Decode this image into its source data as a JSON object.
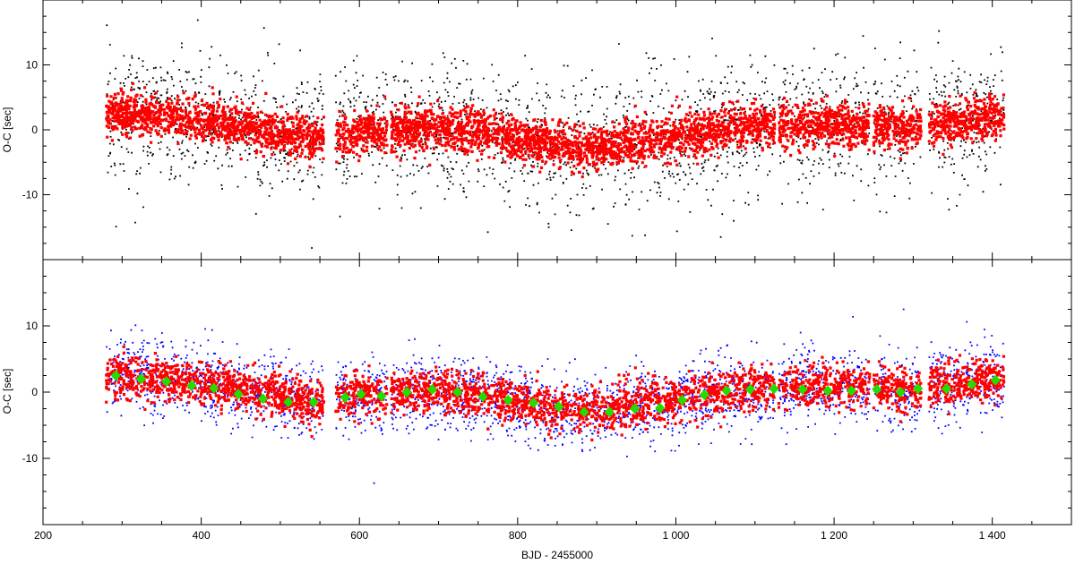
{
  "chart_data": [
    {
      "type": "scatter",
      "xlabel": "",
      "ylabel": "O-C [sec]",
      "xlim": [
        200,
        1500
      ],
      "ylim": [
        -20,
        20
      ],
      "xticks": [
        200,
        400,
        600,
        800,
        1000,
        1200,
        1400
      ],
      "yticks": [
        -10,
        0,
        10
      ],
      "ytick_labels": [
        "-10",
        "0",
        "10"
      ],
      "grid": false,
      "series": [
        {
          "color": "#000000",
          "marker": "dot",
          "spread": 5,
          "values": [
            {
              "x": 300,
              "y": 2.5
            },
            {
              "x": 350,
              "y": 2
            },
            {
              "x": 400,
              "y": 1.5
            },
            {
              "x": 450,
              "y": 0.5
            },
            {
              "x": 500,
              "y": -0.5
            },
            {
              "x": 550,
              "y": -1.5
            },
            {
              "x": 600,
              "y": -0.5
            },
            {
              "x": 650,
              "y": 0
            },
            {
              "x": 700,
              "y": 0
            },
            {
              "x": 750,
              "y": -0.5
            },
            {
              "x": 800,
              "y": -1.5
            },
            {
              "x": 850,
              "y": -2.5
            },
            {
              "x": 900,
              "y": -3
            },
            {
              "x": 950,
              "y": -2
            },
            {
              "x": 1000,
              "y": -1
            },
            {
              "x": 1050,
              "y": 0
            },
            {
              "x": 1100,
              "y": 0.5
            },
            {
              "x": 1150,
              "y": 0.8
            },
            {
              "x": 1200,
              "y": 0.8
            },
            {
              "x": 1250,
              "y": 0.5
            },
            {
              "x": 1300,
              "y": 0.5
            },
            {
              "x": 1350,
              "y": 1
            },
            {
              "x": 1400,
              "y": 2
            }
          ]
        },
        {
          "color": "#ff0000",
          "marker": "square",
          "spread": 1.6,
          "values": [
            {
              "x": 300,
              "y": 2.5
            },
            {
              "x": 350,
              "y": 2
            },
            {
              "x": 400,
              "y": 1.5
            },
            {
              "x": 450,
              "y": 0.5
            },
            {
              "x": 500,
              "y": -0.5
            },
            {
              "x": 550,
              "y": -1.5
            },
            {
              "x": 600,
              "y": -0.5
            },
            {
              "x": 650,
              "y": 0
            },
            {
              "x": 700,
              "y": 0
            },
            {
              "x": 750,
              "y": -0.5
            },
            {
              "x": 800,
              "y": -1.5
            },
            {
              "x": 850,
              "y": -2.5
            },
            {
              "x": 900,
              "y": -3
            },
            {
              "x": 950,
              "y": -2
            },
            {
              "x": 1000,
              "y": -1
            },
            {
              "x": 1050,
              "y": 0
            },
            {
              "x": 1100,
              "y": 0.5
            },
            {
              "x": 1150,
              "y": 0.8
            },
            {
              "x": 1200,
              "y": 0.8
            },
            {
              "x": 1250,
              "y": 0.5
            },
            {
              "x": 1300,
              "y": 0.5
            },
            {
              "x": 1350,
              "y": 1
            },
            {
              "x": 1400,
              "y": 2
            }
          ]
        }
      ],
      "x_coverage": [
        [
          280,
          555
        ],
        [
          570,
          635
        ],
        [
          640,
          1125
        ],
        [
          1130,
          1245
        ],
        [
          1250,
          1310
        ],
        [
          1320,
          1415
        ]
      ]
    },
    {
      "type": "scatter",
      "xlabel": "BJD - 2455000",
      "ylabel": "O-C [sec]",
      "xlim": [
        200,
        1500
      ],
      "ylim": [
        -20,
        20
      ],
      "xticks": [
        200,
        400,
        600,
        800,
        1000,
        1200,
        1400
      ],
      "xtick_labels": [
        "200",
        "400",
        "600",
        "800",
        "1 000",
        "1 200",
        "1 400"
      ],
      "yticks": [
        -10,
        0,
        10
      ],
      "ytick_labels": [
        "-10",
        "0",
        "10"
      ],
      "grid": false,
      "series": [
        {
          "color": "#0000ff",
          "marker": "dot",
          "spread": 2.8,
          "values": [
            {
              "x": 300,
              "y": 2.5
            },
            {
              "x": 350,
              "y": 2
            },
            {
              "x": 400,
              "y": 1.5
            },
            {
              "x": 450,
              "y": 0.5
            },
            {
              "x": 500,
              "y": -0.5
            },
            {
              "x": 550,
              "y": -1.5
            },
            {
              "x": 600,
              "y": -0.5
            },
            {
              "x": 650,
              "y": 0
            },
            {
              "x": 700,
              "y": 0
            },
            {
              "x": 750,
              "y": -0.5
            },
            {
              "x": 800,
              "y": -1.5
            },
            {
              "x": 850,
              "y": -2.5
            },
            {
              "x": 900,
              "y": -3
            },
            {
              "x": 950,
              "y": -2
            },
            {
              "x": 1000,
              "y": -1
            },
            {
              "x": 1050,
              "y": 0
            },
            {
              "x": 1100,
              "y": 0.5
            },
            {
              "x": 1150,
              "y": 0.8
            },
            {
              "x": 1200,
              "y": 0.8
            },
            {
              "x": 1250,
              "y": 0.5
            },
            {
              "x": 1300,
              "y": 0.5
            },
            {
              "x": 1350,
              "y": 1
            },
            {
              "x": 1400,
              "y": 2
            }
          ]
        },
        {
          "color": "#ff0000",
          "marker": "square",
          "spread": 1.6,
          "values": [
            {
              "x": 300,
              "y": 2.5
            },
            {
              "x": 350,
              "y": 2
            },
            {
              "x": 400,
              "y": 1.5
            },
            {
              "x": 450,
              "y": 0.5
            },
            {
              "x": 500,
              "y": -0.5
            },
            {
              "x": 550,
              "y": -1.5
            },
            {
              "x": 600,
              "y": -0.5
            },
            {
              "x": 650,
              "y": 0
            },
            {
              "x": 700,
              "y": 0
            },
            {
              "x": 750,
              "y": -0.5
            },
            {
              "x": 800,
              "y": -1.5
            },
            {
              "x": 850,
              "y": -2.5
            },
            {
              "x": 900,
              "y": -3
            },
            {
              "x": 950,
              "y": -2
            },
            {
              "x": 1000,
              "y": -1
            },
            {
              "x": 1050,
              "y": 0
            },
            {
              "x": 1100,
              "y": 0.5
            },
            {
              "x": 1150,
              "y": 0.8
            },
            {
              "x": 1200,
              "y": 0.8
            },
            {
              "x": 1250,
              "y": 0.5
            },
            {
              "x": 1300,
              "y": 0.5
            },
            {
              "x": 1350,
              "y": 1
            },
            {
              "x": 1400,
              "y": 2
            }
          ]
        },
        {
          "color": "#22dd00",
          "marker": "diamond",
          "values": [
            {
              "x": 292,
              "y": 2.5
            },
            {
              "x": 324,
              "y": 2.0
            },
            {
              "x": 356,
              "y": 1.6
            },
            {
              "x": 388,
              "y": 1.0
            },
            {
              "x": 416,
              "y": 0.6
            },
            {
              "x": 447,
              "y": -0.3
            },
            {
              "x": 478,
              "y": -1.0
            },
            {
              "x": 510,
              "y": -1.5
            },
            {
              "x": 542,
              "y": -1.5
            },
            {
              "x": 582,
              "y": -0.8
            },
            {
              "x": 602,
              "y": -0.3
            },
            {
              "x": 628,
              "y": -0.6
            },
            {
              "x": 660,
              "y": 0.0
            },
            {
              "x": 692,
              "y": 0.4
            },
            {
              "x": 724,
              "y": 0.0
            },
            {
              "x": 756,
              "y": -0.7
            },
            {
              "x": 788,
              "y": -1.2
            },
            {
              "x": 820,
              "y": -1.6
            },
            {
              "x": 852,
              "y": -2.2
            },
            {
              "x": 884,
              "y": -3.0
            },
            {
              "x": 916,
              "y": -3.0
            },
            {
              "x": 948,
              "y": -2.5
            },
            {
              "x": 980,
              "y": -2.4
            },
            {
              "x": 1008,
              "y": -1.2
            },
            {
              "x": 1036,
              "y": -0.4
            },
            {
              "x": 1064,
              "y": 0.2
            },
            {
              "x": 1094,
              "y": 0.4
            },
            {
              "x": 1124,
              "y": 0.5
            },
            {
              "x": 1160,
              "y": 0.4
            },
            {
              "x": 1192,
              "y": 0.2
            },
            {
              "x": 1222,
              "y": 0.2
            },
            {
              "x": 1254,
              "y": 0.4
            },
            {
              "x": 1284,
              "y": 0.0
            },
            {
              "x": 1306,
              "y": 0.5
            },
            {
              "x": 1342,
              "y": 0.5
            },
            {
              "x": 1374,
              "y": 1.2
            },
            {
              "x": 1404,
              "y": 1.8
            }
          ]
        }
      ],
      "x_coverage": [
        [
          280,
          555
        ],
        [
          570,
          635
        ],
        [
          640,
          1125
        ],
        [
          1130,
          1245
        ],
        [
          1250,
          1310
        ],
        [
          1320,
          1415
        ]
      ]
    }
  ]
}
